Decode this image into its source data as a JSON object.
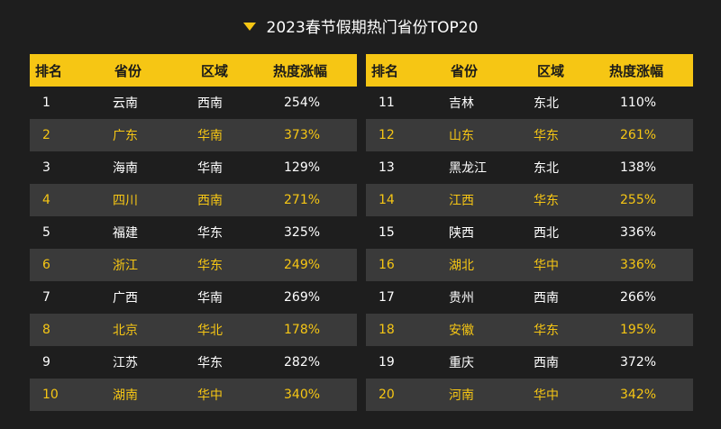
{
  "title": "2023春节假期热门省份TOP20",
  "colors": {
    "accent": "#f6c614",
    "background": "#1e1e1e",
    "alt_row": "#3a3a3a"
  },
  "headers": [
    "排名",
    "省份",
    "区域",
    "热度涨幅"
  ],
  "chart_data": {
    "type": "table",
    "title": "2023春节假期热门省份TOP20",
    "columns": [
      "排名",
      "省份",
      "区域",
      "热度涨幅"
    ],
    "rows": [
      [
        "1",
        "云南",
        "西南",
        "254%"
      ],
      [
        "2",
        "广东",
        "华南",
        "373%"
      ],
      [
        "3",
        "海南",
        "华南",
        "129%"
      ],
      [
        "4",
        "四川",
        "西南",
        "271%"
      ],
      [
        "5",
        "福建",
        "华东",
        "325%"
      ],
      [
        "6",
        "浙江",
        "华东",
        "249%"
      ],
      [
        "7",
        "广西",
        "华南",
        "269%"
      ],
      [
        "8",
        "北京",
        "华北",
        "178%"
      ],
      [
        "9",
        "江苏",
        "华东",
        "282%"
      ],
      [
        "10",
        "湖南",
        "华中",
        "340%"
      ],
      [
        "11",
        "吉林",
        "东北",
        "110%"
      ],
      [
        "12",
        "山东",
        "华东",
        "261%"
      ],
      [
        "13",
        "黑龙江",
        "东北",
        "138%"
      ],
      [
        "14",
        "江西",
        "华东",
        "255%"
      ],
      [
        "15",
        "陕西",
        "西北",
        "336%"
      ],
      [
        "16",
        "湖北",
        "华中",
        "336%"
      ],
      [
        "17",
        "贵州",
        "西南",
        "266%"
      ],
      [
        "18",
        "安徽",
        "华东",
        "195%"
      ],
      [
        "19",
        "重庆",
        "西南",
        "372%"
      ],
      [
        "20",
        "河南",
        "华中",
        "342%"
      ]
    ]
  }
}
